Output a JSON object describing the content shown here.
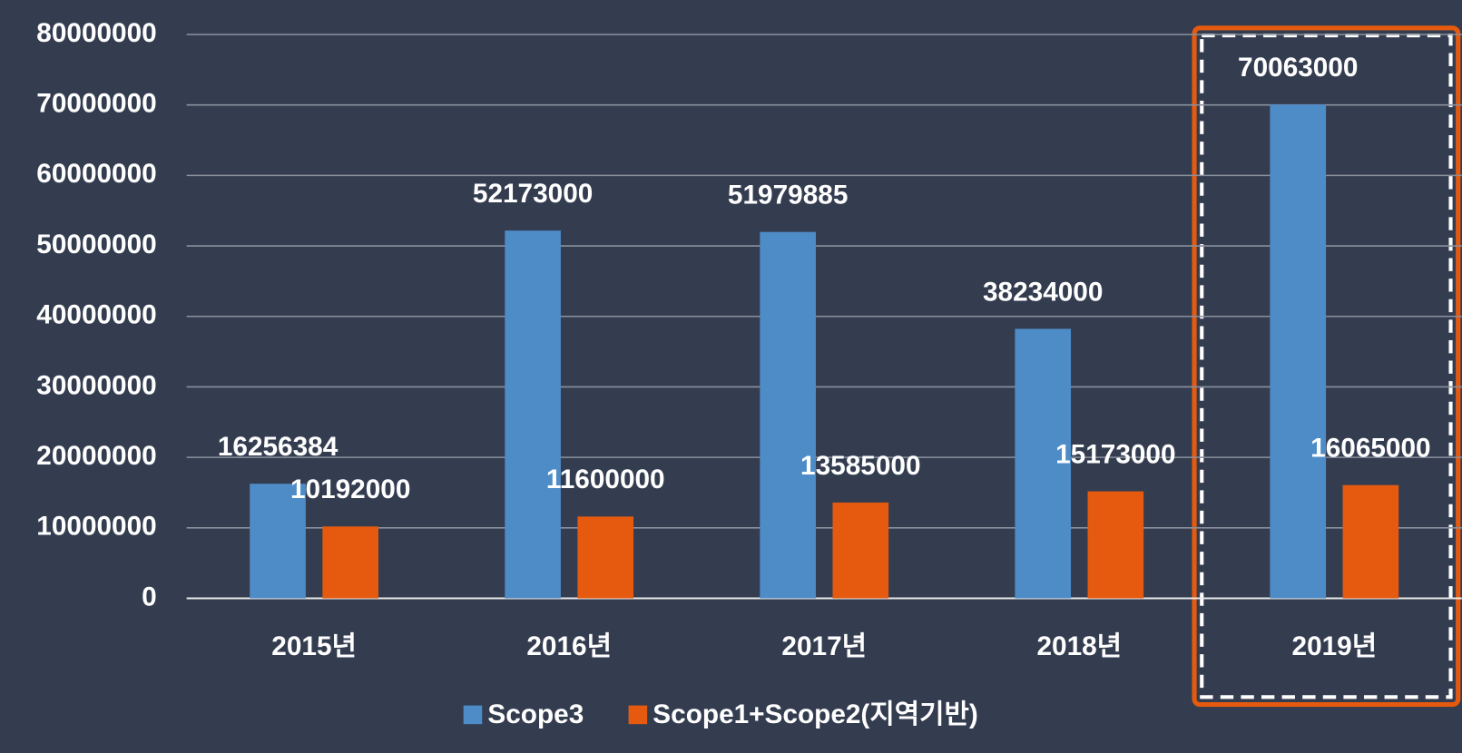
{
  "chart_data": {
    "type": "bar",
    "categories": [
      "2015년",
      "2016년",
      "2017년",
      "2018년",
      "2019년"
    ],
    "series": [
      {
        "name": "Scope3",
        "color": "#4e8cc8",
        "values": [
          16256384,
          52173000,
          51979885,
          38234000,
          70063000
        ]
      },
      {
        "name": "Scope1+Scope2(지역기반)",
        "color": "#e55a0f",
        "values": [
          10192000,
          11600000,
          13585000,
          15173000,
          16065000
        ]
      }
    ],
    "ylim": [
      0,
      80000000
    ],
    "yticks": [
      0,
      10000000,
      20000000,
      30000000,
      40000000,
      50000000,
      60000000,
      70000000,
      80000000
    ],
    "grid": true,
    "legend": "bottom"
  }
}
